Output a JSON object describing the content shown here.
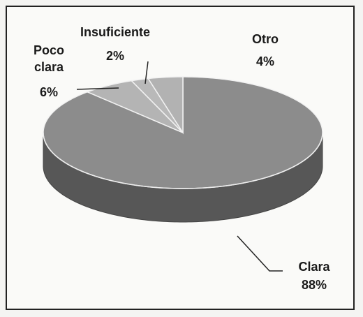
{
  "chart_data": {
    "type": "pie",
    "categories": [
      "Clara",
      "Poco clara",
      "Insuficiente",
      "Otro"
    ],
    "values": [
      88,
      6,
      2,
      4
    ],
    "value_labels": [
      "88%",
      "6%",
      "2%",
      "4%"
    ],
    "colors": [
      "#8c8c8c",
      "#b4b4b4",
      "#b9b9b9",
      "#b2b2b2"
    ]
  }
}
